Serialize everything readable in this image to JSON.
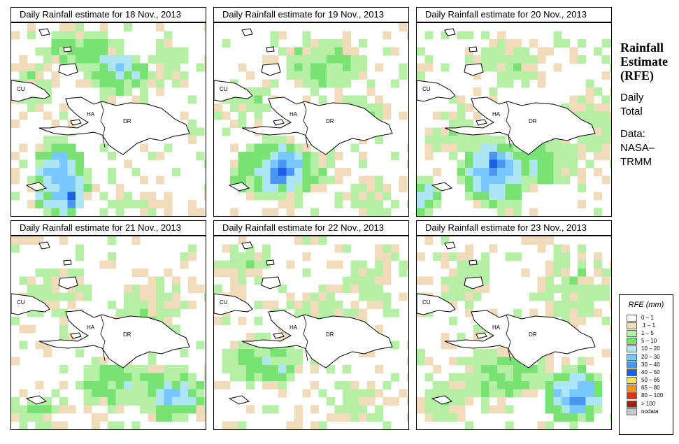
{
  "country_labels": {
    "cuba": "CU",
    "haiti": "HA",
    "dominican_republic": "DR"
  },
  "side_panel": {
    "title_lines": [
      "Rainfall",
      "Estimate",
      "(RFE)"
    ],
    "period_lines": [
      "Daily",
      "Total"
    ],
    "source_lines": [
      "Data:",
      "NASA–",
      "TRMM"
    ]
  },
  "legend": {
    "title": "RFE (mm)",
    "items": [
      {
        "label": "0 – 1",
        "color": "#ffffff"
      },
      {
        "label": ".1 – 1",
        "color": "#f0dcba"
      },
      {
        "label": "1 – 5",
        "color": "#b6f0a6"
      },
      {
        "label": "5 – 10",
        "color": "#78e272"
      },
      {
        "label": "10 – 20",
        "color": "#aee6f6"
      },
      {
        "label": "20 – 30",
        "color": "#78c8ff"
      },
      {
        "label": "30 – 40",
        "color": "#4a96f2"
      },
      {
        "label": "40 – 50",
        "color": "#1e5ee6"
      },
      {
        "label": "50 – 65",
        "color": "#fae164"
      },
      {
        "label": "65 – 80",
        "color": "#fa9600"
      },
      {
        "label": "80 – 100",
        "color": "#e63200"
      },
      {
        "label": "> 100",
        "color": "#a01e1e"
      },
      {
        "label": "nodata",
        "color": "#c8c8c8"
      }
    ]
  },
  "panels": [
    {
      "title": "Daily Rainfall estimate for  18 Nov., 2013"
    },
    {
      "title": "Daily Rainfall estimate for  19 Nov., 2013"
    },
    {
      "title": "Daily Rainfall estimate for  20 Nov., 2013"
    },
    {
      "title": "Daily Rainfall estimate for  21 Nov., 2013"
    },
    {
      "title": "Daily Rainfall estimate for  22 Nov., 2013"
    },
    {
      "title": "Daily Rainfall estimate for  23 Nov., 2013"
    }
  ]
}
